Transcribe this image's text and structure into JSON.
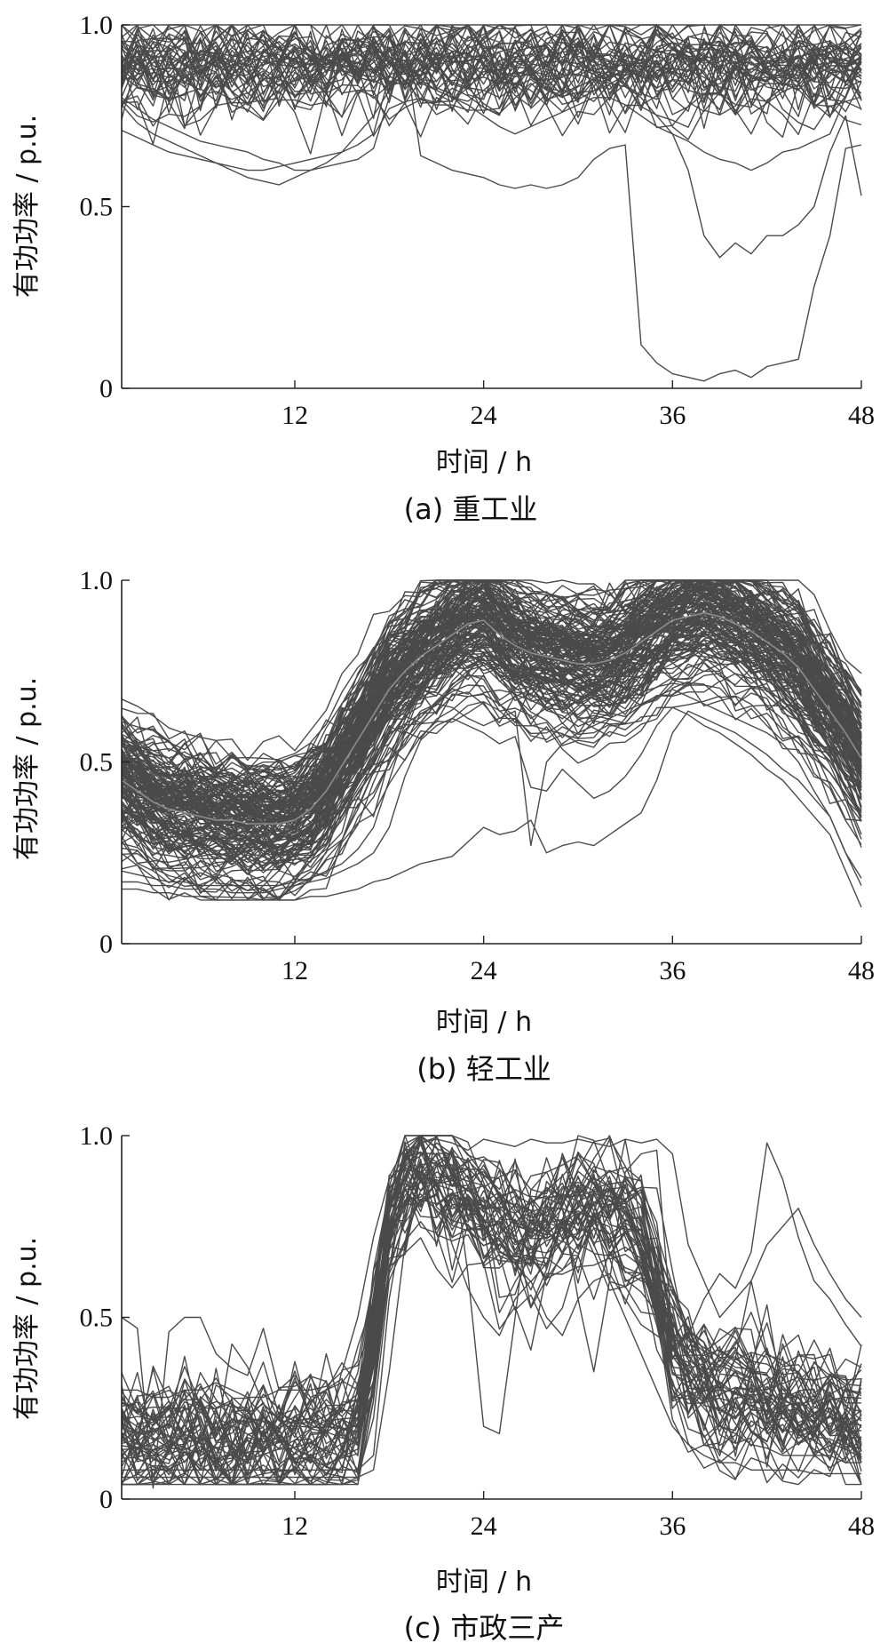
{
  "chart_data": [
    {
      "type": "line",
      "caption": "(a) 重工业",
      "xlabel": "时间 / h",
      "ylabel": "有功功率 / p.u.",
      "xlim": [
        1,
        48
      ],
      "ylim": [
        0,
        1.0
      ],
      "xticks": [
        12,
        24,
        36,
        48
      ],
      "yticks": [
        0,
        0.5,
        1.0
      ],
      "ytick_labels": [
        "0",
        "0.5",
        "1.0"
      ],
      "grid": false,
      "legend": "none",
      "pattern": {
        "profile": [
          0.9,
          0.9,
          0.9,
          0.9,
          0.9,
          0.9,
          0.9,
          0.9,
          0.9,
          0.9,
          0.9,
          0.9,
          0.9,
          0.9,
          0.9,
          0.9,
          0.9,
          0.9,
          0.9,
          0.9,
          0.9,
          0.9,
          0.9,
          0.9,
          0.9,
          0.9,
          0.9,
          0.9,
          0.9,
          0.9,
          0.9,
          0.9,
          0.9,
          0.9,
          0.9,
          0.9,
          0.9,
          0.9,
          0.9,
          0.9,
          0.9,
          0.9,
          0.9,
          0.9,
          0.9,
          0.9,
          0.9,
          0.9
        ],
        "count": 45,
        "spread": 0.06,
        "noise": 0.05,
        "clip": [
          0.55,
          1.0
        ],
        "seed": 11
      },
      "series": [
        {
          "values": [
            0.71,
            0.69,
            0.67,
            0.65,
            0.64,
            0.63,
            0.62,
            0.61,
            0.6,
            0.6,
            0.61,
            0.62,
            0.63,
            0.64,
            0.65,
            0.67,
            0.7,
            0.86,
            0.93,
            0.64,
            0.62,
            0.6,
            0.59,
            0.58,
            0.56,
            0.55,
            0.56,
            0.55,
            0.56,
            0.58,
            0.63,
            0.66,
            0.67,
            0.12,
            0.07,
            0.04,
            0.03,
            0.02,
            0.04,
            0.05,
            0.03,
            0.06,
            0.07,
            0.08,
            0.28,
            0.42,
            0.66,
            0.67
          ]
        },
        {
          "values": [
            0.8,
            0.77,
            0.74,
            0.72,
            0.7,
            0.68,
            0.67,
            0.66,
            0.65,
            0.63,
            0.62,
            0.6,
            0.6,
            0.61,
            0.62,
            0.63,
            0.66,
            0.8,
            0.93,
            0.84,
            0.82,
            0.8,
            0.79,
            0.82,
            0.8,
            0.83,
            0.85,
            0.82,
            0.8,
            0.83,
            0.85,
            0.84,
            0.83,
            0.8,
            0.75,
            0.7,
            0.6,
            0.42,
            0.36,
            0.4,
            0.37,
            0.42,
            0.42,
            0.45,
            0.5,
            0.65,
            0.75,
            0.53
          ]
        },
        {
          "values": [
            0.78,
            0.73,
            0.7,
            0.68,
            0.66,
            0.64,
            0.62,
            0.6,
            0.58,
            0.57,
            0.56,
            0.58,
            0.6,
            0.62,
            0.65,
            0.7,
            0.75,
            0.82,
            0.9,
            0.85,
            0.82,
            0.8,
            0.78,
            0.75,
            0.72,
            0.7,
            0.72,
            0.74,
            0.76,
            0.78,
            0.8,
            0.8,
            0.78,
            0.75,
            0.72,
            0.7,
            0.68,
            0.65,
            0.63,
            0.62,
            0.6,
            0.62,
            0.65,
            0.66,
            0.68,
            0.7,
            0.8,
            0.9
          ]
        }
      ]
    },
    {
      "type": "line",
      "caption": "(b) 轻工业",
      "xlabel": "时间 / h",
      "ylabel": "有功功率 / p.u.",
      "xlim": [
        1,
        48
      ],
      "ylim": [
        0,
        1.0
      ],
      "xticks": [
        12,
        24,
        36,
        48
      ],
      "yticks": [
        0,
        0.5,
        1.0
      ],
      "ytick_labels": [
        "0",
        "0.5",
        "1.0"
      ],
      "grid": false,
      "legend": "none",
      "mean_line": [
        0.45,
        0.42,
        0.39,
        0.37,
        0.36,
        0.35,
        0.34,
        0.34,
        0.33,
        0.33,
        0.33,
        0.34,
        0.37,
        0.42,
        0.49,
        0.56,
        0.63,
        0.7,
        0.75,
        0.79,
        0.82,
        0.85,
        0.88,
        0.89,
        0.85,
        0.82,
        0.8,
        0.79,
        0.78,
        0.77,
        0.77,
        0.78,
        0.8,
        0.83,
        0.86,
        0.89,
        0.9,
        0.91,
        0.9,
        0.88,
        0.86,
        0.83,
        0.8,
        0.76,
        0.7,
        0.64,
        0.58,
        0.51
      ],
      "pattern": {
        "profile": [
          0.45,
          0.42,
          0.39,
          0.37,
          0.36,
          0.35,
          0.34,
          0.34,
          0.33,
          0.33,
          0.33,
          0.34,
          0.37,
          0.42,
          0.49,
          0.56,
          0.63,
          0.7,
          0.75,
          0.79,
          0.82,
          0.85,
          0.88,
          0.89,
          0.85,
          0.82,
          0.8,
          0.79,
          0.78,
          0.77,
          0.77,
          0.78,
          0.8,
          0.83,
          0.86,
          0.89,
          0.9,
          0.91,
          0.9,
          0.88,
          0.86,
          0.83,
          0.8,
          0.76,
          0.7,
          0.64,
          0.58,
          0.51
        ],
        "count": 150,
        "spread": 0.085,
        "noise": 0.025,
        "clip": [
          0.12,
          1.0
        ],
        "seed": 23
      },
      "series": [
        {
          "values": [
            0.15,
            0.15,
            0.14,
            0.14,
            0.13,
            0.13,
            0.12,
            0.12,
            0.12,
            0.12,
            0.12,
            0.12,
            0.13,
            0.13,
            0.14,
            0.15,
            0.17,
            0.18,
            0.2,
            0.22,
            0.23,
            0.24,
            0.28,
            0.32,
            0.3,
            0.31,
            0.34,
            0.25,
            0.27,
            0.28,
            0.27,
            0.3,
            0.33,
            0.36,
            0.45,
            0.58,
            0.64,
            0.62,
            0.6,
            0.58,
            0.55,
            0.52,
            0.48,
            0.45,
            0.4,
            0.35,
            0.25,
            0.18
          ]
        },
        {
          "values": [
            0.17,
            0.17,
            0.16,
            0.16,
            0.15,
            0.15,
            0.15,
            0.14,
            0.14,
            0.14,
            0.15,
            0.16,
            0.17,
            0.18,
            0.2,
            0.22,
            0.25,
            0.32,
            0.46,
            0.56,
            0.6,
            0.62,
            0.6,
            0.58,
            0.55,
            0.57,
            0.43,
            0.42,
            0.48,
            0.44,
            0.4,
            0.42,
            0.46,
            0.52,
            0.6,
            0.65,
            0.63,
            0.6,
            0.58,
            0.55,
            0.52,
            0.48,
            0.45,
            0.4,
            0.35,
            0.3,
            0.2,
            0.1
          ]
        },
        {
          "values": [
            0.2,
            0.19,
            0.18,
            0.17,
            0.17,
            0.16,
            0.16,
            0.16,
            0.16,
            0.16,
            0.16,
            0.17,
            0.18,
            0.2,
            0.22,
            0.26,
            0.32,
            0.45,
            0.58,
            0.64,
            0.66,
            0.65,
            0.62,
            0.6,
            0.62,
            0.64,
            0.27,
            0.5,
            0.55,
            0.58,
            0.6,
            0.62,
            0.64,
            0.66,
            0.68,
            0.7,
            0.68,
            0.66,
            0.64,
            0.62,
            0.6,
            0.58,
            0.55,
            0.5,
            0.42,
            0.35,
            0.25,
            0.16
          ]
        }
      ]
    },
    {
      "type": "line",
      "caption": "(c) 市政三产",
      "xlabel": "时间 / h",
      "ylabel": "有功功率 / p.u.",
      "xlim": [
        1,
        48
      ],
      "ylim": [
        0,
        1.0
      ],
      "xticks": [
        12,
        24,
        36,
        48
      ],
      "yticks": [
        0,
        0.5,
        1.0
      ],
      "ytick_labels": [
        "0",
        "0.5",
        "1.0"
      ],
      "grid": false,
      "legend": "none",
      "pattern": {
        "profile": [
          0.18,
          0.18,
          0.17,
          0.17,
          0.17,
          0.17,
          0.17,
          0.17,
          0.17,
          0.17,
          0.17,
          0.17,
          0.17,
          0.17,
          0.18,
          0.22,
          0.45,
          0.75,
          0.88,
          0.92,
          0.9,
          0.88,
          0.84,
          0.8,
          0.77,
          0.75,
          0.74,
          0.75,
          0.78,
          0.8,
          0.82,
          0.8,
          0.78,
          0.72,
          0.6,
          0.45,
          0.36,
          0.33,
          0.31,
          0.3,
          0.29,
          0.28,
          0.27,
          0.26,
          0.25,
          0.24,
          0.23,
          0.22
        ],
        "count": 50,
        "spread": 0.07,
        "noise": 0.06,
        "clip": [
          0.04,
          1.0
        ],
        "seed": 37
      },
      "series": [
        {
          "values": [
            0.5,
            0.47,
            0.03,
            0.46,
            0.5,
            0.5,
            0.4,
            0.36,
            0.34,
            0.47,
            0.3,
            0.34,
            0.28,
            0.3,
            0.32,
            0.38,
            0.6,
            0.8,
            0.95,
            0.98,
            0.99,
            0.98,
            0.96,
            0.99,
            0.98,
            0.97,
            0.99,
            0.98,
            0.98,
            0.99,
            0.98,
            0.97,
            0.99,
            0.98,
            0.99,
            0.95,
            0.7,
            0.6,
            0.5,
            0.55,
            0.6,
            0.7,
            0.75,
            0.8,
            0.7,
            0.62,
            0.55,
            0.5
          ]
        },
        {
          "values": [
            0.08,
            0.08,
            0.08,
            0.08,
            0.08,
            0.08,
            0.08,
            0.08,
            0.08,
            0.08,
            0.08,
            0.08,
            0.08,
            0.08,
            0.08,
            0.08,
            0.12,
            0.55,
            0.8,
            0.9,
            0.98,
            0.95,
            0.62,
            0.2,
            0.18,
            0.5,
            0.85,
            0.9,
            0.8,
            0.55,
            0.35,
            0.6,
            0.9,
            0.95,
            0.96,
            0.45,
            0.3,
            0.25,
            0.2,
            0.18,
            0.15,
            0.14,
            0.12,
            0.12,
            0.12,
            0.12,
            0.1,
            0.1
          ]
        },
        {
          "values": [
            0.3,
            0.3,
            0.28,
            0.28,
            0.3,
            0.3,
            0.32,
            0.3,
            0.28,
            0.28,
            0.3,
            0.3,
            0.3,
            0.31,
            0.35,
            0.5,
            0.72,
            0.88,
            0.92,
            0.9,
            0.85,
            0.7,
            0.58,
            0.5,
            0.45,
            0.55,
            0.6,
            0.5,
            0.45,
            0.55,
            0.6,
            0.62,
            0.55,
            0.48,
            0.45,
            0.42,
            0.45,
            0.55,
            0.62,
            0.58,
            0.68,
            0.98,
            0.88,
            0.72,
            0.6,
            0.55,
            0.48,
            0.42
          ]
        },
        {
          "values": [
            0.06,
            0.06,
            0.06,
            0.06,
            0.06,
            0.06,
            0.06,
            0.06,
            0.06,
            0.06,
            0.06,
            0.06,
            0.06,
            0.06,
            0.06,
            0.06,
            0.08,
            0.35,
            0.7,
            0.85,
            0.9,
            0.88,
            0.85,
            0.8,
            0.75,
            0.7,
            0.72,
            0.75,
            0.8,
            0.78,
            0.7,
            0.6,
            0.5,
            0.4,
            0.3,
            0.2,
            0.15,
            0.12,
            0.1,
            0.1,
            0.08,
            0.08,
            0.08,
            0.08,
            0.07,
            0.07,
            0.07,
            0.07
          ]
        }
      ]
    }
  ]
}
